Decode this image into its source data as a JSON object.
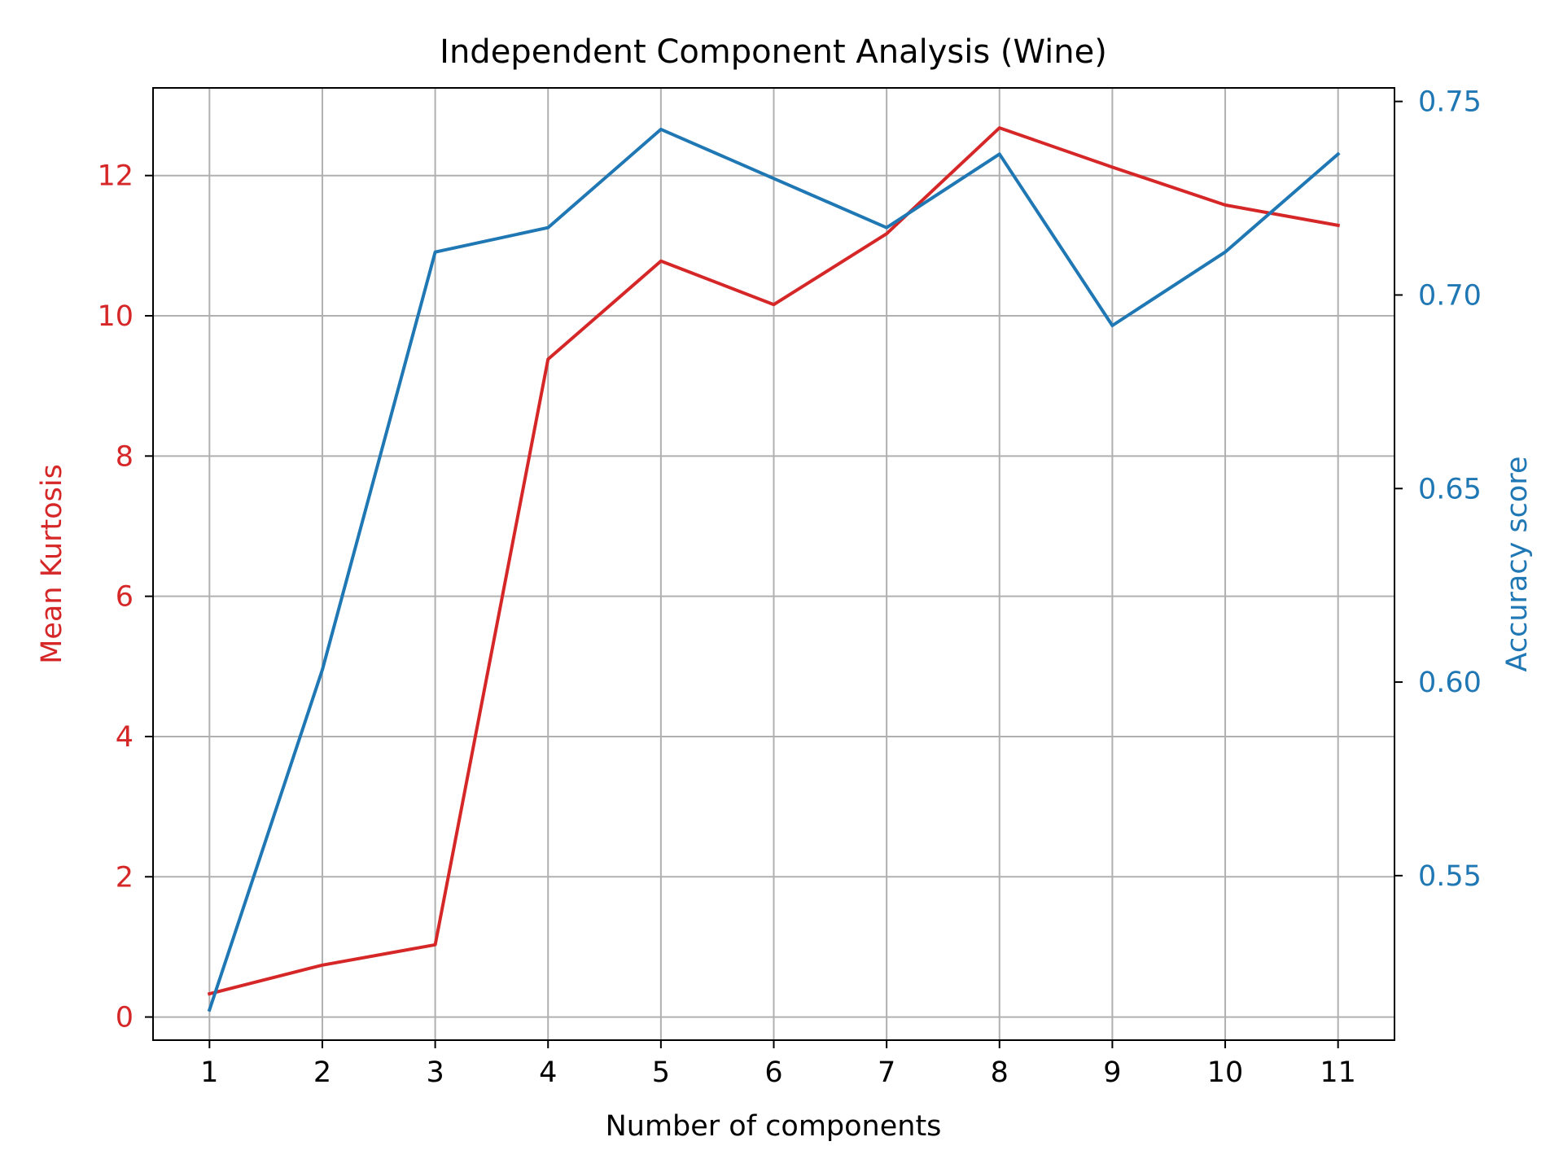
{
  "chart_data": {
    "type": "line",
    "title": "Independent Component Analysis (Wine)",
    "xlabel": "Number of components",
    "ylabel_left": "Mean Kurtosis",
    "ylabel_right": "Accuracy score",
    "x": [
      1,
      2,
      3,
      4,
      5,
      6,
      7,
      8,
      9,
      10,
      11
    ],
    "x_ticks": [
      "1",
      "2",
      "3",
      "4",
      "5",
      "6",
      "7",
      "8",
      "9",
      "10",
      "11"
    ],
    "y_left_ticks": [
      "0",
      "2",
      "4",
      "6",
      "8",
      "10",
      "12"
    ],
    "y_right_ticks": [
      "0.55",
      "0.60",
      "0.65",
      "0.70",
      "0.75"
    ],
    "xlim": [
      0.5,
      11.5
    ],
    "ylim_left": [
      -0.33,
      13.25
    ],
    "ylim_right": [
      0.5075,
      0.7535
    ],
    "grid": true,
    "series": [
      {
        "name": "Mean Kurtosis",
        "axis": "left",
        "color": "#d62728",
        "values": [
          0.33,
          0.74,
          1.03,
          9.38,
          10.78,
          10.16,
          11.17,
          12.68,
          12.12,
          11.58,
          11.29
        ]
      },
      {
        "name": "Accuracy score",
        "axis": "right",
        "color": "#1f77b4",
        "values": [
          0.5153,
          0.6032,
          0.7111,
          0.7174,
          0.7428,
          0.7301,
          0.7174,
          0.7364,
          0.6921,
          0.7111,
          0.7364
        ]
      }
    ]
  }
}
